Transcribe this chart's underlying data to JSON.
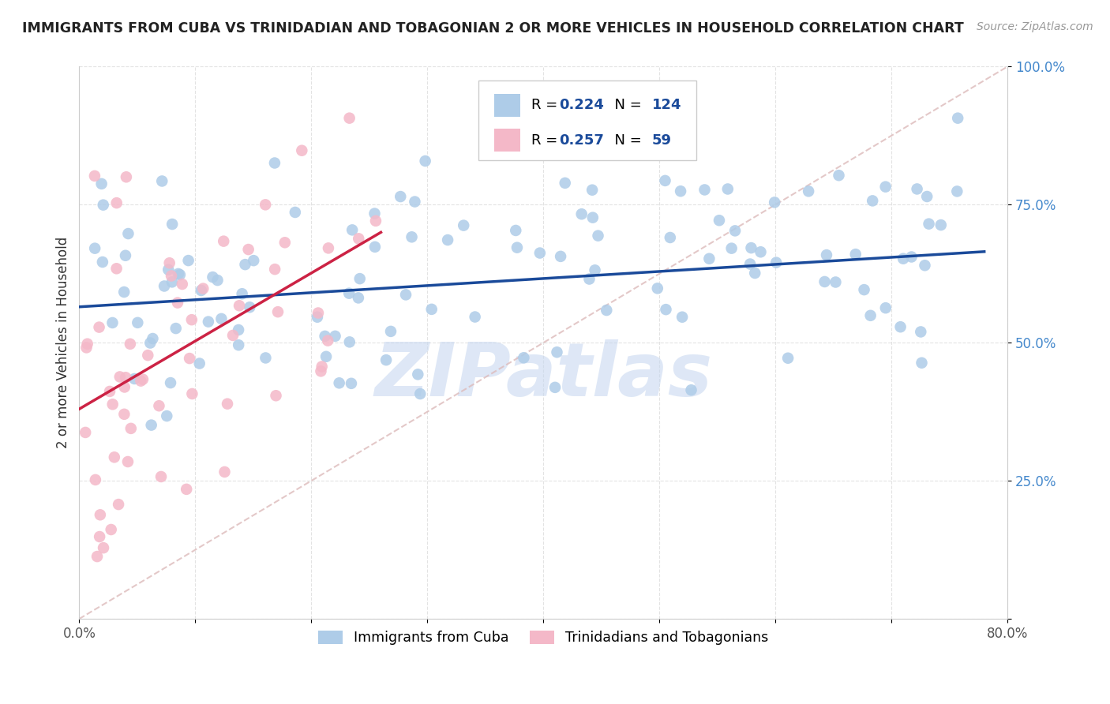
{
  "title": "IMMIGRANTS FROM CUBA VS TRINIDADIAN AND TOBAGONIAN 2 OR MORE VEHICLES IN HOUSEHOLD CORRELATION CHART",
  "source": "Source: ZipAtlas.com",
  "ylabel": "2 or more Vehicles in Household",
  "xlim": [
    0.0,
    0.8
  ],
  "ylim": [
    0.0,
    1.0
  ],
  "xticks": [
    0.0,
    0.1,
    0.2,
    0.3,
    0.4,
    0.5,
    0.6,
    0.7,
    0.8
  ],
  "xticklabels": [
    "0.0%",
    "",
    "",
    "",
    "",
    "",
    "",
    "",
    "80.0%"
  ],
  "yticks": [
    0.0,
    0.25,
    0.5,
    0.75,
    1.0
  ],
  "yticklabels": [
    "",
    "25.0%",
    "50.0%",
    "75.0%",
    "100.0%"
  ],
  "cuba_R": 0.224,
  "cuba_N": 124,
  "trint_R": 0.257,
  "trint_N": 59,
  "blue_color": "#aecce8",
  "blue_edge": "#aecce8",
  "pink_color": "#f4b8c8",
  "pink_edge": "#f4b8c8",
  "blue_line_color": "#1a4a9a",
  "pink_line_color": "#cc2244",
  "ref_line_color": "#ddbbbb",
  "ytick_color": "#4488cc",
  "xtick_color": "#555555",
  "watermark_color": "#c8d8f0",
  "watermark_text": "ZIPatlas",
  "blue_trend_x0": 0.0,
  "blue_trend_y0": 0.565,
  "blue_trend_x1": 0.78,
  "blue_trend_y1": 0.665,
  "pink_trend_x0": 0.0,
  "pink_trend_y0": 0.38,
  "pink_trend_x1": 0.26,
  "pink_trend_y1": 0.7
}
